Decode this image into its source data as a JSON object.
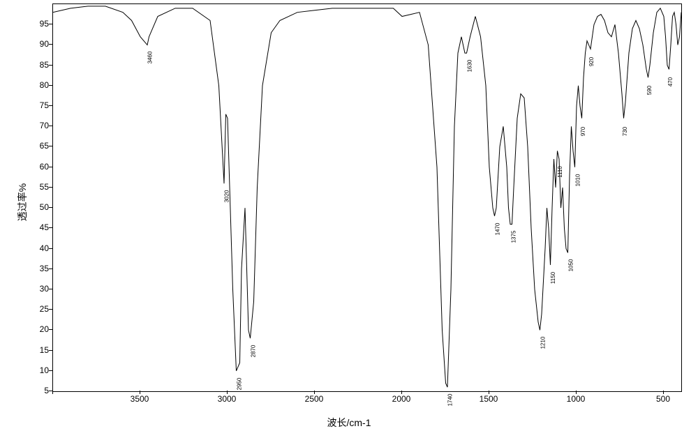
{
  "chart": {
    "type": "line",
    "x_axis_label": "波长/cm-1",
    "y_axis_label": "透过率%",
    "background_color": "#ffffff",
    "line_color": "#000000",
    "border_color": "#000000",
    "x_axis": {
      "min": 400,
      "max": 4000,
      "reversed": true,
      "ticks": [
        4000,
        3500,
        3000,
        2500,
        2000,
        1500,
        1000,
        500
      ],
      "tick_labels": [
        "",
        "3500",
        "3000",
        "2500",
        "2000",
        "1500",
        "1000",
        "500"
      ]
    },
    "y_axis": {
      "min": 5,
      "max": 100,
      "ticks": [
        5,
        10,
        15,
        20,
        25,
        30,
        35,
        40,
        45,
        50,
        55,
        60,
        65,
        70,
        75,
        80,
        85,
        90,
        95
      ],
      "tick_labels": [
        "5",
        "10",
        "15",
        "20",
        "25",
        "30",
        "35",
        "40",
        "45",
        "50",
        "55",
        "60",
        "65",
        "70",
        "75",
        "80",
        "85",
        "90",
        "95"
      ]
    },
    "spectrum_points": [
      [
        4000,
        98
      ],
      [
        3900,
        99
      ],
      [
        3800,
        99.5
      ],
      [
        3700,
        99.5
      ],
      [
        3600,
        98
      ],
      [
        3550,
        96
      ],
      [
        3500,
        92
      ],
      [
        3460,
        90
      ],
      [
        3450,
        92
      ],
      [
        3400,
        97
      ],
      [
        3300,
        99
      ],
      [
        3200,
        99
      ],
      [
        3100,
        96
      ],
      [
        3050,
        80
      ],
      [
        3020,
        56
      ],
      [
        3010,
        73
      ],
      [
        3000,
        72
      ],
      [
        2970,
        30
      ],
      [
        2950,
        10
      ],
      [
        2930,
        12
      ],
      [
        2920,
        35
      ],
      [
        2900,
        50
      ],
      [
        2880,
        20
      ],
      [
        2870,
        18
      ],
      [
        2850,
        27
      ],
      [
        2830,
        55
      ],
      [
        2800,
        80
      ],
      [
        2750,
        93
      ],
      [
        2700,
        96
      ],
      [
        2600,
        98
      ],
      [
        2500,
        98.5
      ],
      [
        2400,
        99
      ],
      [
        2300,
        99
      ],
      [
        2200,
        99
      ],
      [
        2100,
        99
      ],
      [
        2050,
        99
      ],
      [
        2000,
        97
      ],
      [
        1950,
        97.5
      ],
      [
        1900,
        98
      ],
      [
        1850,
        90
      ],
      [
        1800,
        60
      ],
      [
        1770,
        20
      ],
      [
        1750,
        7
      ],
      [
        1740,
        6
      ],
      [
        1720,
        30
      ],
      [
        1700,
        70
      ],
      [
        1680,
        88
      ],
      [
        1660,
        92
      ],
      [
        1640,
        88
      ],
      [
        1630,
        88
      ],
      [
        1610,
        92
      ],
      [
        1580,
        97
      ],
      [
        1550,
        92
      ],
      [
        1520,
        80
      ],
      [
        1500,
        60
      ],
      [
        1480,
        50
      ],
      [
        1470,
        48
      ],
      [
        1460,
        50
      ],
      [
        1440,
        65
      ],
      [
        1420,
        70
      ],
      [
        1400,
        60
      ],
      [
        1390,
        50
      ],
      [
        1380,
        46
      ],
      [
        1370,
        46
      ],
      [
        1360,
        55
      ],
      [
        1340,
        72
      ],
      [
        1320,
        78
      ],
      [
        1300,
        77
      ],
      [
        1280,
        65
      ],
      [
        1260,
        45
      ],
      [
        1240,
        30
      ],
      [
        1220,
        22
      ],
      [
        1210,
        20
      ],
      [
        1200,
        24
      ],
      [
        1180,
        40
      ],
      [
        1170,
        50
      ],
      [
        1160,
        45
      ],
      [
        1150,
        36
      ],
      [
        1140,
        50
      ],
      [
        1130,
        62
      ],
      [
        1120,
        55
      ],
      [
        1110,
        64
      ],
      [
        1100,
        62
      ],
      [
        1090,
        50
      ],
      [
        1080,
        55
      ],
      [
        1070,
        45
      ],
      [
        1060,
        40
      ],
      [
        1050,
        39
      ],
      [
        1040,
        58
      ],
      [
        1030,
        70
      ],
      [
        1020,
        64
      ],
      [
        1010,
        60
      ],
      [
        1000,
        75
      ],
      [
        990,
        80
      ],
      [
        980,
        75
      ],
      [
        970,
        72
      ],
      [
        960,
        82
      ],
      [
        950,
        88
      ],
      [
        940,
        91
      ],
      [
        930,
        90
      ],
      [
        920,
        89
      ],
      [
        910,
        92
      ],
      [
        900,
        95
      ],
      [
        880,
        97
      ],
      [
        860,
        97.5
      ],
      [
        840,
        96
      ],
      [
        820,
        93
      ],
      [
        800,
        92
      ],
      [
        780,
        95
      ],
      [
        760,
        88
      ],
      [
        740,
        78
      ],
      [
        730,
        72
      ],
      [
        720,
        76
      ],
      [
        700,
        88
      ],
      [
        680,
        94
      ],
      [
        660,
        96
      ],
      [
        640,
        94
      ],
      [
        620,
        90
      ],
      [
        600,
        84
      ],
      [
        590,
        82
      ],
      [
        580,
        85
      ],
      [
        560,
        93
      ],
      [
        540,
        98
      ],
      [
        520,
        99
      ],
      [
        500,
        97
      ],
      [
        490,
        92
      ],
      [
        480,
        85
      ],
      [
        470,
        84
      ],
      [
        460,
        90
      ],
      [
        450,
        97
      ],
      [
        440,
        98
      ],
      [
        430,
        95
      ],
      [
        420,
        90
      ],
      [
        410,
        92
      ],
      [
        400,
        98
      ]
    ],
    "peak_labels": [
      {
        "wavenumber": 3460,
        "transmittance": 90,
        "label": "3460"
      },
      {
        "wavenumber": 3020,
        "transmittance": 56,
        "label": "3020"
      },
      {
        "wavenumber": 2950,
        "transmittance": 10,
        "label": "2950"
      },
      {
        "wavenumber": 2870,
        "transmittance": 18,
        "label": "2870"
      },
      {
        "wavenumber": 1740,
        "transmittance": 6,
        "label": "1740"
      },
      {
        "wavenumber": 1630,
        "transmittance": 88,
        "label": "1630"
      },
      {
        "wavenumber": 1470,
        "transmittance": 48,
        "label": "1470"
      },
      {
        "wavenumber": 1375,
        "transmittance": 46,
        "label": "1375"
      },
      {
        "wavenumber": 1210,
        "transmittance": 20,
        "label": "1210"
      },
      {
        "wavenumber": 1150,
        "transmittance": 36,
        "label": "1150"
      },
      {
        "wavenumber": 1110,
        "transmittance": 62,
        "label": "1110"
      },
      {
        "wavenumber": 1050,
        "transmittance": 39,
        "label": "1050"
      },
      {
        "wavenumber": 1010,
        "transmittance": 60,
        "label": "1010"
      },
      {
        "wavenumber": 970,
        "transmittance": 72,
        "label": "970"
      },
      {
        "wavenumber": 920,
        "transmittance": 89,
        "label": "920"
      },
      {
        "wavenumber": 730,
        "transmittance": 72,
        "label": "730"
      },
      {
        "wavenumber": 590,
        "transmittance": 82,
        "label": "590"
      },
      {
        "wavenumber": 470,
        "transmittance": 84,
        "label": "470"
      }
    ]
  }
}
